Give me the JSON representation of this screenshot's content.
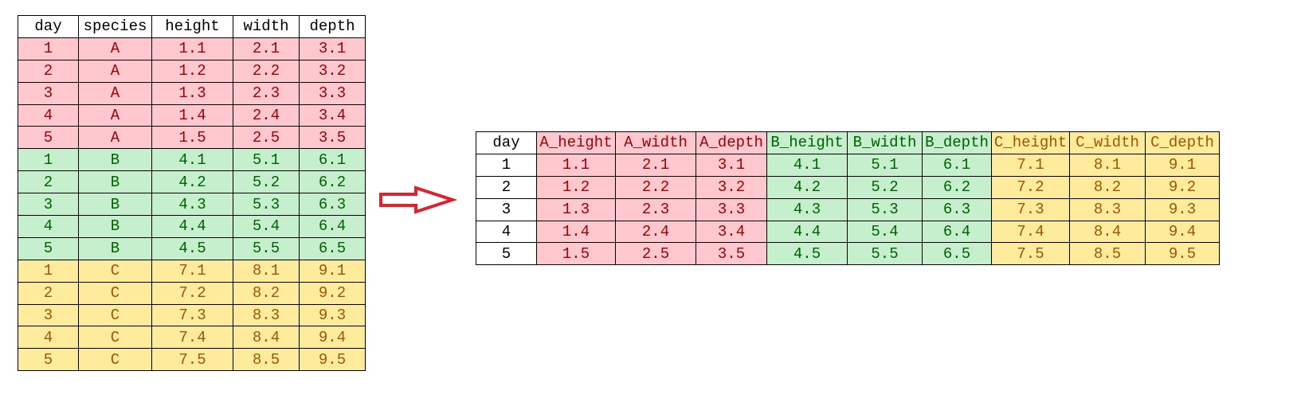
{
  "colors": {
    "A": {
      "fill": "#FFC7CE",
      "text": "#9C0006"
    },
    "B": {
      "fill": "#C6EFCE",
      "text": "#006100"
    },
    "C": {
      "fill": "#FFEB9C",
      "text": "#9C5700"
    },
    "arrow": "#D9232D"
  },
  "long_table": {
    "headers": [
      "day",
      "species",
      "height",
      "width",
      "depth"
    ],
    "rows": [
      [
        "1",
        "A",
        "1.1",
        "2.1",
        "3.1"
      ],
      [
        "2",
        "A",
        "1.2",
        "2.2",
        "3.2"
      ],
      [
        "3",
        "A",
        "1.3",
        "2.3",
        "3.3"
      ],
      [
        "4",
        "A",
        "1.4",
        "2.4",
        "3.4"
      ],
      [
        "5",
        "A",
        "1.5",
        "2.5",
        "3.5"
      ],
      [
        "1",
        "B",
        "4.1",
        "5.1",
        "6.1"
      ],
      [
        "2",
        "B",
        "4.2",
        "5.2",
        "6.2"
      ],
      [
        "3",
        "B",
        "4.3",
        "5.3",
        "6.3"
      ],
      [
        "4",
        "B",
        "4.4",
        "5.4",
        "6.4"
      ],
      [
        "5",
        "B",
        "4.5",
        "5.5",
        "6.5"
      ],
      [
        "1",
        "C",
        "7.1",
        "8.1",
        "9.1"
      ],
      [
        "2",
        "C",
        "7.2",
        "8.2",
        "9.2"
      ],
      [
        "3",
        "C",
        "7.3",
        "8.3",
        "9.3"
      ],
      [
        "4",
        "C",
        "7.4",
        "8.4",
        "9.4"
      ],
      [
        "5",
        "C",
        "7.5",
        "8.5",
        "9.5"
      ]
    ]
  },
  "arrow_icon": "right-arrow-outline",
  "wide_table": {
    "headers": [
      "day",
      "A_height",
      "A_width",
      "A_depth",
      "B_height",
      "B_width",
      "B_depth",
      "C_height",
      "C_width",
      "C_depth"
    ],
    "header_groups": [
      "",
      "A",
      "A",
      "A",
      "B",
      "B",
      "B",
      "C",
      "C",
      "C"
    ],
    "rows": [
      [
        "1",
        "1.1",
        "2.1",
        "3.1",
        "4.1",
        "5.1",
        "6.1",
        "7.1",
        "8.1",
        "9.1"
      ],
      [
        "2",
        "1.2",
        "2.2",
        "3.2",
        "4.2",
        "5.2",
        "6.2",
        "7.2",
        "8.2",
        "9.2"
      ],
      [
        "3",
        "1.3",
        "2.3",
        "3.3",
        "4.3",
        "5.3",
        "6.3",
        "7.3",
        "8.3",
        "9.3"
      ],
      [
        "4",
        "1.4",
        "2.4",
        "3.4",
        "4.4",
        "5.4",
        "6.4",
        "7.4",
        "8.4",
        "9.4"
      ],
      [
        "5",
        "1.5",
        "2.5",
        "3.5",
        "4.5",
        "5.5",
        "6.5",
        "7.5",
        "8.5",
        "9.5"
      ]
    ]
  }
}
